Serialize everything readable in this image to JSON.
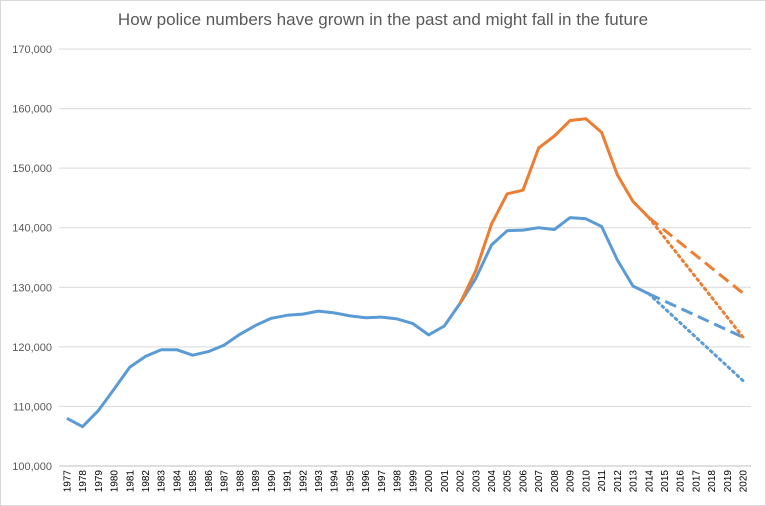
{
  "chart_data": {
    "type": "line",
    "title": "How police numbers have grown in the past and might fall in the future",
    "xlabel": "",
    "ylabel": "",
    "ylim": [
      100000,
      170000
    ],
    "yticks": [
      100000,
      110000,
      120000,
      130000,
      140000,
      150000,
      160000,
      170000
    ],
    "ytick_labels": [
      "100,000",
      "110,000",
      "120,000",
      "130,000",
      "140,000",
      "150,000",
      "160,000",
      "170,000"
    ],
    "x": [
      "1977",
      "1978",
      "1979",
      "1980",
      "1981",
      "1982",
      "1983",
      "1984",
      "1985",
      "1986",
      "1987",
      "1988",
      "1989",
      "1990",
      "1991",
      "1992",
      "1993",
      "1994",
      "1995",
      "1996",
      "1997",
      "1998",
      "1999",
      "2000",
      "2001",
      "2002",
      "2003",
      "2004",
      "2005",
      "2006",
      "2007",
      "2008",
      "2009",
      "2010",
      "2011",
      "2012",
      "2013",
      "2014",
      "2015",
      "2016",
      "2017",
      "2018",
      "2019",
      "2020"
    ],
    "grid": "horizontal",
    "legend": "none",
    "series": [
      {
        "color": "#5b9bd5",
        "style": "solid",
        "points": [
          [
            "1977",
            108000
          ],
          [
            "1978",
            106600
          ],
          [
            "1979",
            109300
          ],
          [
            "1980",
            112900
          ],
          [
            "1981",
            116600
          ],
          [
            "1982",
            118400
          ],
          [
            "1983",
            119500
          ],
          [
            "1984",
            119500
          ],
          [
            "1985",
            118600
          ],
          [
            "1986",
            119200
          ],
          [
            "1987",
            120300
          ],
          [
            "1988",
            122100
          ],
          [
            "1989",
            123600
          ],
          [
            "1990",
            124800
          ],
          [
            "1991",
            125300
          ],
          [
            "1992",
            125500
          ],
          [
            "1993",
            126000
          ],
          [
            "1994",
            125700
          ],
          [
            "1995",
            125200
          ],
          [
            "1996",
            124900
          ],
          [
            "1997",
            125000
          ],
          [
            "1998",
            124700
          ],
          [
            "1999",
            123900
          ],
          [
            "2000",
            122000
          ],
          [
            "2001",
            123500
          ],
          [
            "2002",
            127300
          ],
          [
            "2003",
            131500
          ],
          [
            "2004",
            137100
          ],
          [
            "2005",
            139500
          ],
          [
            "2006",
            139600
          ],
          [
            "2007",
            140000
          ],
          [
            "2008",
            139700
          ],
          [
            "2009",
            141700
          ],
          [
            "2010",
            141500
          ],
          [
            "2011",
            140200
          ],
          [
            "2012",
            134600
          ],
          [
            "2013",
            130200
          ],
          [
            "2014",
            128900
          ]
        ]
      },
      {
        "color": "#ed7d31",
        "style": "solid",
        "points": [
          [
            "2002",
            127300
          ],
          [
            "2003",
            132800
          ],
          [
            "2004",
            140600
          ],
          [
            "2005",
            145700
          ],
          [
            "2006",
            146300
          ],
          [
            "2007",
            153400
          ],
          [
            "2008",
            155400
          ],
          [
            "2009",
            158000
          ],
          [
            "2010",
            158300
          ],
          [
            "2011",
            156000
          ],
          [
            "2012",
            148900
          ],
          [
            "2013",
            144400
          ],
          [
            "2014",
            141700
          ]
        ]
      },
      {
        "color": "#5b9bd5",
        "style": "dashed",
        "points": [
          [
            "2014",
            128900
          ],
          [
            "2020",
            121600
          ]
        ]
      },
      {
        "color": "#5b9bd5",
        "style": "dotted",
        "points": [
          [
            "2014",
            128900
          ],
          [
            "2020",
            114300
          ]
        ]
      },
      {
        "color": "#ed7d31",
        "style": "dashed",
        "points": [
          [
            "2014",
            141700
          ],
          [
            "2020",
            129000
          ]
        ]
      },
      {
        "color": "#ed7d31",
        "style": "dotted",
        "points": [
          [
            "2014",
            141700
          ],
          [
            "2020",
            121600
          ]
        ]
      }
    ]
  }
}
